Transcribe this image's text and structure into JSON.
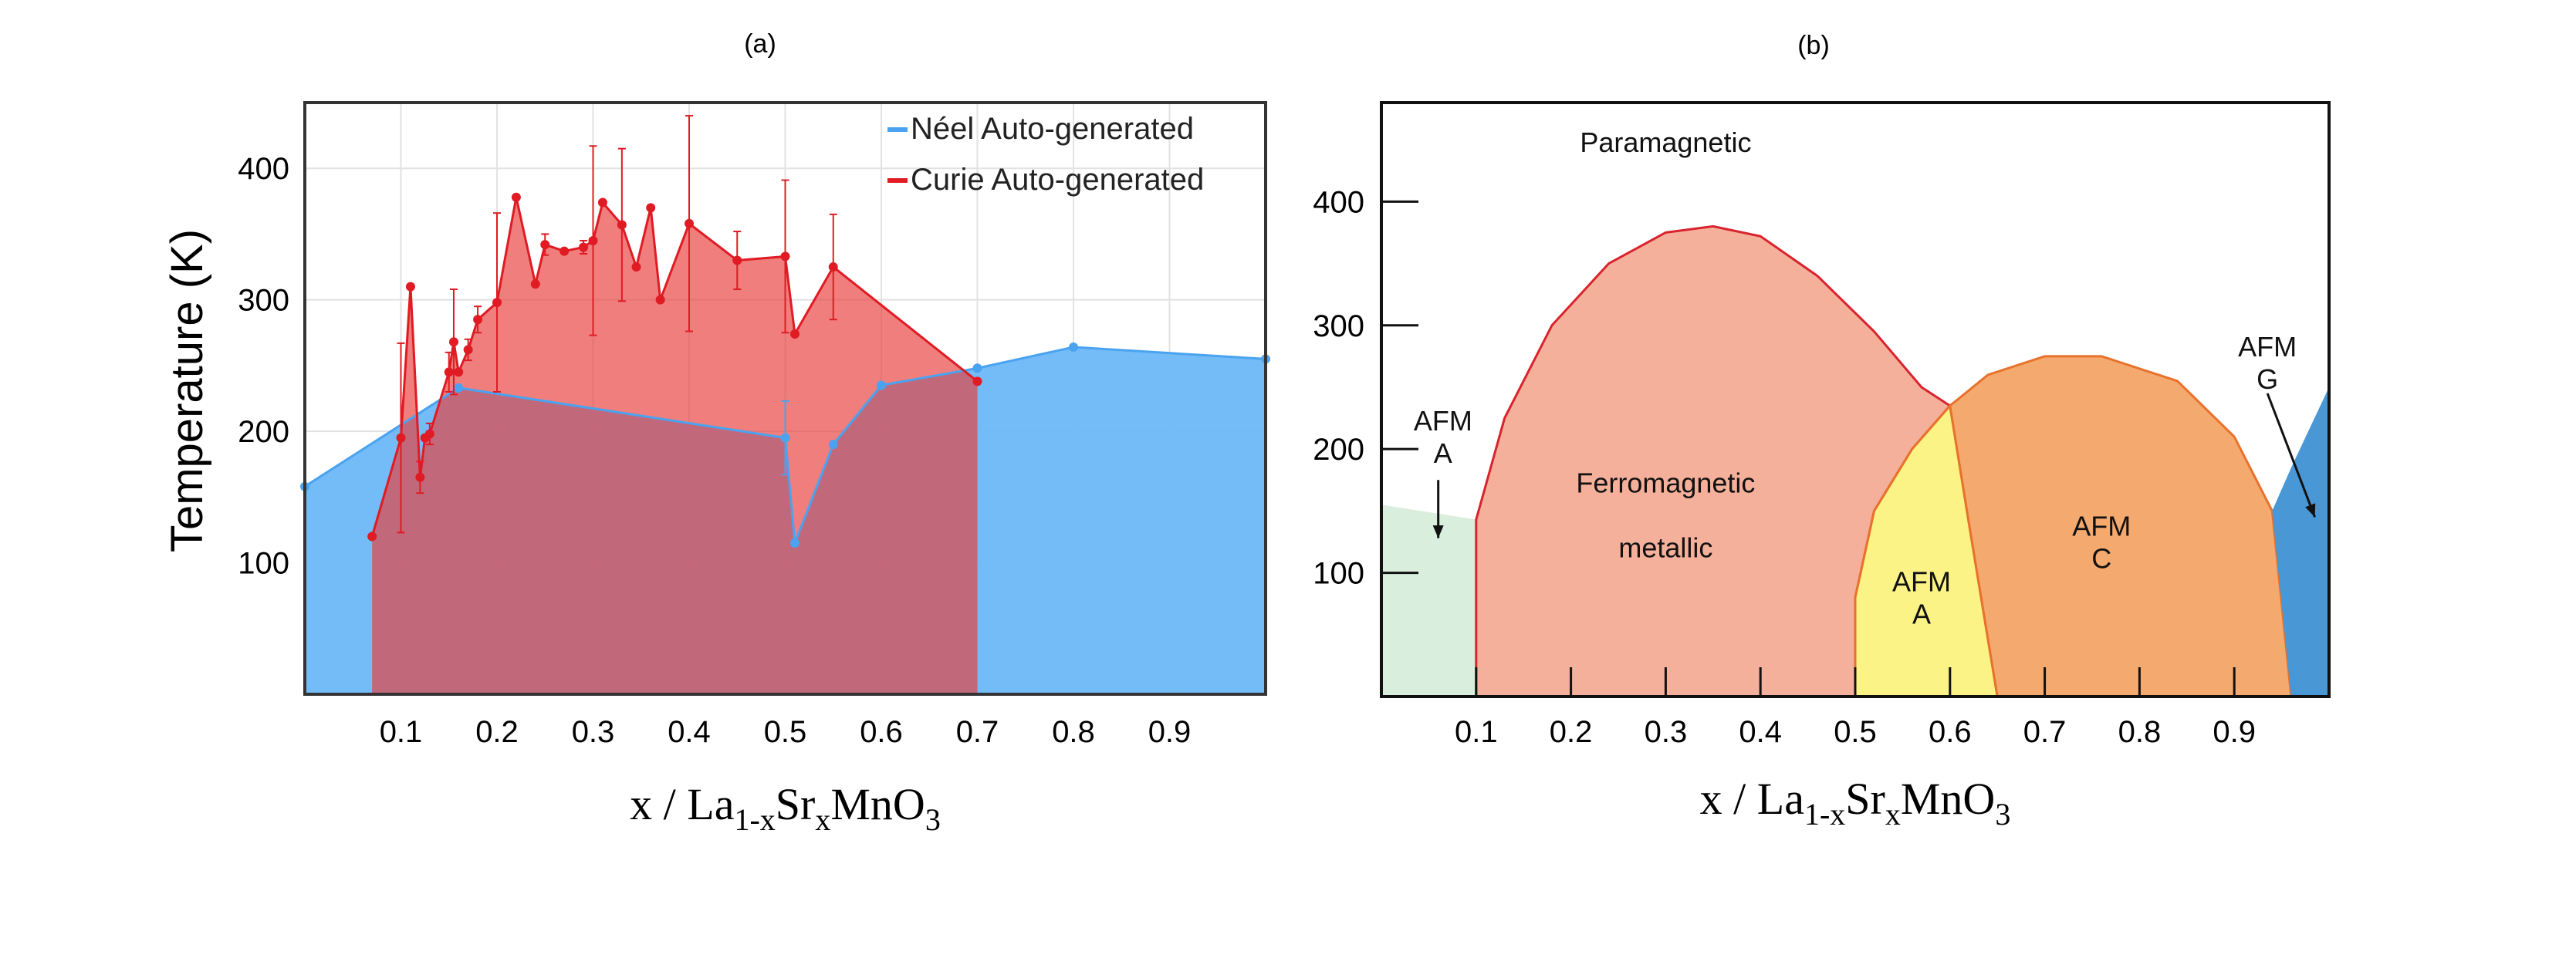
{
  "figure": {
    "panel_a_label": "(a)",
    "panel_b_label": "(b)"
  },
  "chart_data": [
    {
      "type": "area",
      "panel": "(a)",
      "title": "",
      "ylabel": "Temperature (K)",
      "xlabel_parts": [
        "x / La",
        "1-x",
        "Sr",
        "x",
        "MnO",
        "3"
      ],
      "xlim": [
        0,
        1
      ],
      "ylim": [
        0,
        450
      ],
      "xticks": [
        0.1,
        0.2,
        0.3,
        0.4,
        0.5,
        0.6,
        0.7,
        0.8,
        0.9
      ],
      "xtick_labels": [
        "0.1",
        "0.2",
        "0.3",
        "0.4",
        "0.5",
        "0.6",
        "0.7",
        "0.8",
        "0.9"
      ],
      "yticks": [
        100,
        200,
        300,
        400
      ],
      "ytick_labels": [
        "100",
        "200",
        "300",
        "400"
      ],
      "grid": true,
      "legend_position": "top-right",
      "series": [
        {
          "name": "Néel Auto-generated",
          "color": "#4aa3f0",
          "fill": "#6db8f7",
          "x": [
            0.0,
            0.16,
            0.5,
            0.51,
            0.55,
            0.6,
            0.7,
            0.8,
            1.0
          ],
          "y": [
            158,
            233,
            195,
            115,
            190,
            235,
            248,
            264,
            255
          ],
          "err": [
            0,
            0,
            28,
            0,
            0,
            0,
            0,
            0,
            0
          ]
        },
        {
          "name": "Curie Auto-generated",
          "color": "#e01b24",
          "fill": "#ef6b6b",
          "x": [
            0.07,
            0.1,
            0.11,
            0.12,
            0.125,
            0.13,
            0.15,
            0.155,
            0.16,
            0.17,
            0.18,
            0.2,
            0.22,
            0.24,
            0.25,
            0.27,
            0.29,
            0.3,
            0.31,
            0.33,
            0.345,
            0.36,
            0.37,
            0.4,
            0.45,
            0.5,
            0.51,
            0.55,
            0.7
          ],
          "y": [
            120,
            195,
            310,
            165,
            195,
            198,
            245,
            268,
            245,
            262,
            285,
            298,
            378,
            312,
            342,
            337,
            340,
            345,
            374,
            357,
            325,
            370,
            300,
            358,
            330,
            333,
            274,
            325,
            238
          ],
          "err": [
            0,
            72,
            0,
            12,
            0,
            8,
            15,
            40,
            0,
            8,
            10,
            68,
            0,
            0,
            8,
            0,
            5,
            72,
            0,
            58,
            0,
            0,
            0,
            82,
            22,
            58,
            0,
            40,
            0
          ]
        }
      ]
    },
    {
      "type": "area",
      "panel": "(b)",
      "title": "",
      "ylabel": "",
      "xlabel_parts": [
        "x / La",
        "1-x",
        "Sr",
        "x",
        "MnO",
        "3"
      ],
      "xlim": [
        0,
        1
      ],
      "ylim": [
        0,
        480
      ],
      "xticks": [
        0.1,
        0.2,
        0.3,
        0.4,
        0.5,
        0.6,
        0.7,
        0.8,
        0.9
      ],
      "xtick_labels": [
        "0.1",
        "0.2",
        "0.3",
        "0.4",
        "0.5",
        "0.6",
        "0.7",
        "0.8",
        "0.9"
      ],
      "yticks": [
        100,
        200,
        300,
        400
      ],
      "ytick_labels": [
        "100",
        "200",
        "300",
        "400"
      ],
      "regions": [
        {
          "name": "Paramagnetic",
          "lines": [
            "Paramagnetic"
          ],
          "color": "#ffffff",
          "label_at": [
            0.3,
            440
          ]
        },
        {
          "name": "AFM A (low x)",
          "lines": [
            "AFM",
            "A"
          ],
          "color": "#d9eedd",
          "label_at": [
            0.065,
            215
          ],
          "boundary": [
            [
              0,
              0
            ],
            [
              0,
              155
            ],
            [
              0.1,
              143
            ],
            [
              0.1,
              0
            ]
          ]
        },
        {
          "name": "Ferromagnetic metallic",
          "lines": [
            "Ferromagnetic",
            "metallic"
          ],
          "color": "#f5b09b",
          "edge": "#d9232d",
          "label_at": [
            0.3,
            165
          ],
          "boundary": [
            [
              0.1,
              0
            ],
            [
              0.1,
              143
            ],
            [
              0.13,
              225
            ],
            [
              0.18,
              300
            ],
            [
              0.24,
              350
            ],
            [
              0.3,
              375
            ],
            [
              0.35,
              380
            ],
            [
              0.4,
              372
            ],
            [
              0.46,
              340
            ],
            [
              0.52,
              295
            ],
            [
              0.57,
              250
            ],
            [
              0.6,
              235
            ],
            [
              0.56,
              200
            ],
            [
              0.52,
              150
            ],
            [
              0.5,
              80
            ],
            [
              0.5,
              0
            ]
          ]
        },
        {
          "name": "AFM A (mid x)",
          "lines": [
            "AFM",
            "A"
          ],
          "color": "#fbf386",
          "edge": "#e8722b",
          "label_at": [
            0.57,
            85
          ],
          "boundary": [
            [
              0.5,
              0
            ],
            [
              0.5,
              80
            ],
            [
              0.52,
              150
            ],
            [
              0.56,
              200
            ],
            [
              0.6,
              235
            ],
            [
              0.62,
              140
            ],
            [
              0.65,
              0
            ]
          ]
        },
        {
          "name": "AFM C",
          "lines": [
            "AFM",
            "C"
          ],
          "color": "#f4a96e",
          "edge": "#e8722b",
          "label_at": [
            0.76,
            130
          ],
          "boundary": [
            [
              0.65,
              0
            ],
            [
              0.62,
              140
            ],
            [
              0.6,
              235
            ],
            [
              0.64,
              260
            ],
            [
              0.7,
              275
            ],
            [
              0.76,
              275
            ],
            [
              0.84,
              255
            ],
            [
              0.9,
              210
            ],
            [
              0.94,
              150
            ],
            [
              0.96,
              0
            ]
          ]
        },
        {
          "name": "AFM G",
          "lines": [
            "AFM",
            "G"
          ],
          "color": "#4a97d6",
          "label_at": [
            0.935,
            275
          ],
          "boundary": [
            [
              0.96,
              0
            ],
            [
              0.94,
              150
            ],
            [
              0.96,
              185
            ],
            [
              1.0,
              250
            ],
            [
              1.0,
              0
            ]
          ]
        }
      ],
      "arrows": [
        {
          "from": [
            0.06,
            175
          ],
          "to": [
            0.06,
            128
          ]
        },
        {
          "from": [
            0.935,
            245
          ],
          "to": [
            0.985,
            145
          ]
        }
      ]
    }
  ]
}
